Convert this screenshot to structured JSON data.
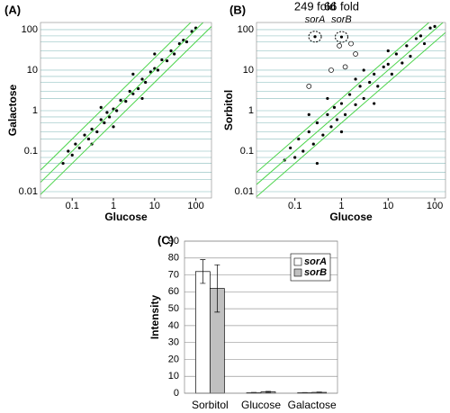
{
  "chart_data": [
    {
      "type": "scatter",
      "label": "(A)",
      "x_label": "Glucose",
      "y_label": "Galactose",
      "log_x": true,
      "log_y": true,
      "xlim": [
        0.017,
        240
      ],
      "ylim": [
        0.007,
        150
      ],
      "xticks": [
        0.1,
        1,
        10,
        100
      ],
      "yticks": [
        0.01,
        0.1,
        1,
        10,
        100
      ],
      "minor_yticks": [
        0.02,
        0.03,
        0.05,
        0.07,
        0.2,
        0.3,
        0.5,
        0.7,
        2,
        3,
        5,
        7,
        20,
        30,
        50,
        70
      ],
      "fold_lines": [
        0.5,
        1,
        2
      ],
      "color": "#000000",
      "line_color": "#4cd44c",
      "grid_color": "#a9cfcf",
      "x": [
        0.06,
        0.08,
        0.1,
        0.12,
        0.15,
        0.2,
        0.25,
        0.3,
        0.4,
        0.5,
        0.6,
        0.7,
        0.8,
        1,
        1.2,
        1.5,
        2,
        2.5,
        3,
        4,
        5,
        6,
        8,
        10,
        12,
        15,
        20,
        25,
        30,
        40,
        50,
        60,
        80,
        100,
        0.3,
        1,
        3,
        10,
        0.5,
        5
      ],
      "y": [
        0.05,
        0.1,
        0.08,
        0.15,
        0.12,
        0.25,
        0.2,
        0.35,
        0.3,
        0.6,
        0.5,
        0.9,
        0.7,
        1.1,
        1,
        1.8,
        1.7,
        3,
        2.6,
        3.5,
        6,
        5,
        9,
        11,
        10,
        18,
        17,
        30,
        25,
        45,
        55,
        50,
        90,
        110,
        0.15,
        0.4,
        8,
        25,
        1.2,
        2
      ]
    },
    {
      "type": "scatter",
      "label": "(B)",
      "x_label": "Glucose",
      "y_label": "Sorbitol",
      "log_x": true,
      "log_y": true,
      "xlim": [
        0.015,
        170
      ],
      "ylim": [
        0.007,
        150
      ],
      "xticks": [
        0.1,
        1,
        10,
        100
      ],
      "yticks": [
        0.01,
        0.1,
        1,
        10,
        100
      ],
      "minor_yticks": [
        0.02,
        0.03,
        0.05,
        0.07,
        0.2,
        0.3,
        0.5,
        0.7,
        2,
        3,
        5,
        7,
        20,
        30,
        50,
        70
      ],
      "fold_lines": [
        0.5,
        1,
        2
      ],
      "color": "#000000",
      "line_color": "#4cd44c",
      "grid_color": "#a9cfcf",
      "x": [
        0.06,
        0.08,
        0.1,
        0.12,
        0.15,
        0.2,
        0.25,
        0.3,
        0.4,
        0.5,
        0.6,
        0.7,
        0.8,
        1,
        1.2,
        1.5,
        2,
        2.5,
        3,
        4,
        5,
        6,
        8,
        10,
        12,
        15,
        20,
        25,
        30,
        40,
        50,
        60,
        80,
        100,
        0.3,
        1,
        3,
        10,
        0.5,
        5,
        0.2,
        2
      ],
      "y": [
        0.06,
        0.12,
        0.07,
        0.2,
        0.1,
        0.3,
        0.15,
        0.5,
        0.25,
        0.8,
        0.4,
        1.2,
        0.6,
        1.5,
        0.8,
        2.5,
        1.4,
        4,
        2,
        5,
        8,
        4,
        12,
        14,
        8,
        25,
        15,
        40,
        22,
        60,
        70,
        45,
        110,
        120,
        0.05,
        0.3,
        10,
        30,
        2,
        1.5,
        0.8,
        6
      ],
      "highlight": {
        "x": [
          0.9,
          1.6,
          2,
          0.6,
          0.2,
          1.2
        ],
        "y": [
          40,
          45,
          25,
          10,
          4,
          12
        ]
      },
      "annotations": [
        {
          "text": "249 fold",
          "gene": "sorA",
          "x": 0.27,
          "y": 67
        },
        {
          "text": "66 fold",
          "gene": "sorB",
          "x": 1,
          "y": 66
        }
      ]
    },
    {
      "type": "bar",
      "label": "(C)",
      "y_label": "Intensity",
      "categories": [
        "Sorbitol",
        "Glucose",
        "Galactose"
      ],
      "ylim": [
        0,
        90
      ],
      "yticks": [
        0,
        10,
        20,
        30,
        40,
        50,
        60,
        70,
        80,
        90
      ],
      "grid": true,
      "legend": "upper right",
      "series": [
        {
          "name": "sorA",
          "color": "#ffffff",
          "values": [
            72,
            0.3,
            0.3
          ],
          "errors": [
            7,
            0.2,
            0.1
          ]
        },
        {
          "name": "sorB",
          "color": "#c0c0c0",
          "values": [
            62,
            0.8,
            0.5
          ],
          "errors": [
            14,
            0.3,
            0.2
          ]
        }
      ]
    }
  ]
}
